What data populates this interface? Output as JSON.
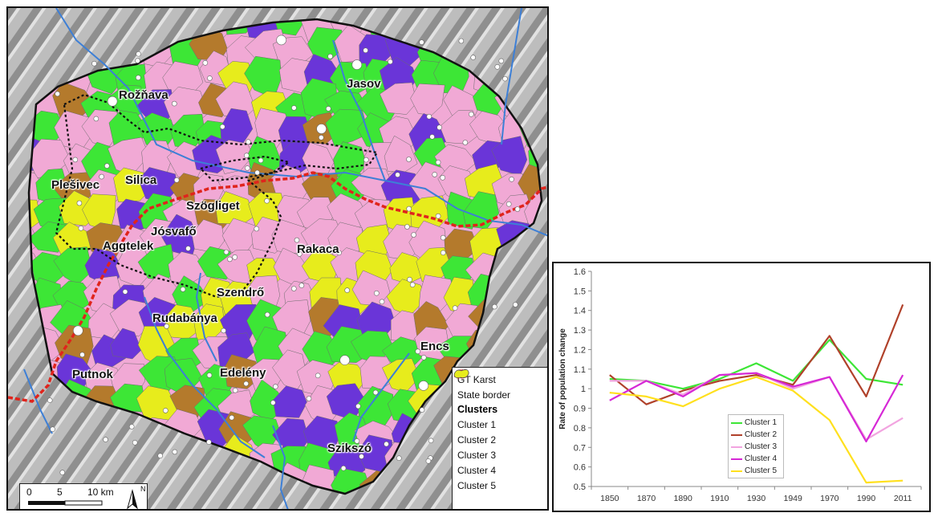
{
  "map": {
    "towns": [
      {
        "name": "Rožňava"
      },
      {
        "name": "Jasov"
      },
      {
        "name": "Plešivec"
      },
      {
        "name": "Silica"
      },
      {
        "name": "Szögliget"
      },
      {
        "name": "Jósvafő"
      },
      {
        "name": "Aggtelek"
      },
      {
        "name": "Rakaca"
      },
      {
        "name": "Szendrő"
      },
      {
        "name": "Rudabánya"
      },
      {
        "name": "Encs"
      },
      {
        "name": "Putnok"
      },
      {
        "name": "Edelény"
      },
      {
        "name": "Szikszó"
      }
    ],
    "colors": {
      "cluster1": "#3de636",
      "cluster2": "#b47a2c",
      "cluster3": "#f1a9d5",
      "cluster4": "#6a35d8",
      "cluster5": "#e7ec1c",
      "river": "#3d7fd6",
      "state_border": "#e0241c",
      "karst": "#111111",
      "relief": "#b9b9b9"
    },
    "legend": {
      "karst_label": "GT Karst",
      "border_label": "State border",
      "clusters_title": "Clusters",
      "cluster_labels": [
        "Cluster 1",
        "Cluster 2",
        "Cluster 3",
        "Cluster 4",
        "Cluster 5"
      ]
    },
    "scale": {
      "labels": [
        "0",
        "5",
        "10 km"
      ],
      "north": "N"
    }
  },
  "chart_data": {
    "type": "line",
    "x": [
      "1850",
      "1870",
      "1890",
      "1910",
      "1930",
      "1949",
      "1970",
      "1990",
      "2011"
    ],
    "ylabel": "Rate of population change",
    "ylim": [
      0.5,
      1.6
    ],
    "yticks": [
      "0.5",
      "0.6",
      "0.7",
      "0.8",
      "0.9",
      "1",
      "1.1",
      "1.2",
      "1.3",
      "1.4",
      "1.5",
      "1.6"
    ],
    "grid": false,
    "legend_position": "bottom-center",
    "series": [
      {
        "name": "Cluster 1",
        "color": "#3de636",
        "values": [
          1.05,
          1.04,
          1.0,
          1.05,
          1.13,
          1.04,
          1.25,
          1.05,
          1.02
        ]
      },
      {
        "name": "Cluster 2",
        "color": "#b0412a",
        "values": [
          1.07,
          0.92,
          0.99,
          1.04,
          1.07,
          1.02,
          1.27,
          0.96,
          1.43
        ]
      },
      {
        "name": "Cluster 3",
        "color": "#f2a4e0",
        "values": [
          1.04,
          1.04,
          0.97,
          1.07,
          1.08,
          1.0,
          1.06,
          0.74,
          0.85
        ]
      },
      {
        "name": "Cluster 4",
        "color": "#d628d6",
        "values": [
          0.94,
          1.04,
          0.96,
          1.07,
          1.08,
          1.01,
          1.06,
          0.73,
          1.07
        ]
      },
      {
        "name": "Cluster 5",
        "color": "#ffe01e",
        "values": [
          0.98,
          0.96,
          0.91,
          1.0,
          1.06,
          0.99,
          0.84,
          0.52,
          0.53
        ]
      }
    ]
  }
}
